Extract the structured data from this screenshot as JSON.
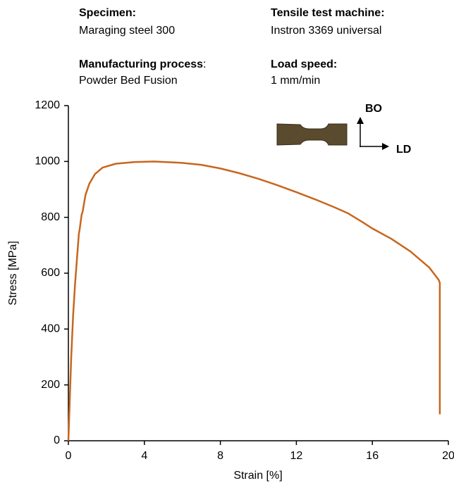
{
  "header": {
    "specimen_label": "Specimen:",
    "specimen_value": "Maraging steel 300",
    "process_label": "Manufacturing process",
    "process_colon": ":",
    "process_value": "Powder Bed Fusion",
    "machine_label": "Tensile test machine:",
    "machine_value": "Instron 3369 universal",
    "speed_label": "Load speed:",
    "speed_value": "1 mm/min"
  },
  "chart_data": {
    "type": "line",
    "x_label": "Strain [%]",
    "y_label": "Stress [MPa]",
    "annotations": [
      "BO",
      "LD"
    ],
    "color": "#c8661e",
    "x": [
      0,
      0.05,
      0.15,
      0.25,
      0.35,
      0.45,
      0.55,
      0.6,
      0.7,
      0.75,
      0.9,
      1.1,
      1.4,
      1.8,
      2.5,
      3.5,
      4.5,
      6,
      7,
      8,
      9,
      10,
      11,
      12,
      13,
      14,
      14.7,
      15.5,
      16,
      17,
      18,
      19,
      19.5,
      19.55,
      19.55
    ],
    "values": [
      0,
      100,
      300,
      450,
      560,
      650,
      740,
      760,
      810,
      820,
      880,
      920,
      955,
      978,
      992,
      998,
      1000,
      995,
      988,
      975,
      958,
      938,
      915,
      890,
      864,
      836,
      815,
      782,
      760,
      723,
      678,
      620,
      575,
      565,
      95
    ],
    "xlim": [
      0,
      20
    ],
    "ylim": [
      0,
      1200
    ],
    "xticks": [
      0,
      4,
      8,
      12,
      16,
      20
    ],
    "yticks": [
      0,
      200,
      400,
      600,
      800,
      1000,
      1200
    ]
  }
}
